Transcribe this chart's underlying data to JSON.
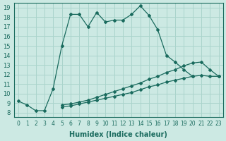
{
  "xlabel": "Humidex (Indice chaleur)",
  "xlim": [
    -0.5,
    23.5
  ],
  "ylim": [
    7.5,
    19.5
  ],
  "xticks": [
    0,
    1,
    2,
    3,
    4,
    5,
    6,
    7,
    8,
    9,
    10,
    11,
    12,
    13,
    14,
    15,
    16,
    17,
    18,
    19,
    20,
    21,
    22,
    23
  ],
  "yticks": [
    8,
    9,
    10,
    11,
    12,
    13,
    14,
    15,
    16,
    17,
    18,
    19
  ],
  "bg_color": "#cce9e3",
  "line_color": "#1a6b5e",
  "grid_color": "#aad4cc",
  "line1_x": [
    0,
    1,
    2,
    3,
    4,
    5,
    6,
    7,
    8,
    9,
    10,
    11,
    12,
    13,
    14,
    15,
    16,
    17,
    18,
    19,
    20
  ],
  "line1_y": [
    9.2,
    8.8,
    8.2,
    8.2,
    10.5,
    15.0,
    18.3,
    18.3,
    17.0,
    18.5,
    17.5,
    17.7,
    17.7,
    18.3,
    19.2,
    18.2,
    16.7,
    14.0,
    13.3,
    12.5,
    11.8
  ],
  "line2_x": [
    5,
    6,
    7,
    8,
    9,
    10,
    11,
    12,
    13,
    14,
    15,
    16,
    17,
    18,
    19,
    20,
    21,
    22,
    23
  ],
  "line2_y": [
    8.8,
    8.9,
    9.1,
    9.3,
    9.6,
    9.9,
    10.2,
    10.5,
    10.8,
    11.1,
    11.5,
    11.8,
    12.2,
    12.5,
    12.9,
    13.2,
    13.3,
    12.5,
    11.8
  ],
  "line3_x": [
    5,
    6,
    7,
    8,
    9,
    10,
    11,
    12,
    13,
    14,
    15,
    16,
    17,
    18,
    19,
    20,
    21,
    22,
    23
  ],
  "line3_y": [
    8.6,
    8.7,
    8.9,
    9.1,
    9.3,
    9.5,
    9.7,
    9.9,
    10.1,
    10.4,
    10.7,
    10.9,
    11.2,
    11.4,
    11.6,
    11.8,
    11.9,
    11.8,
    11.8
  ],
  "font_size_label": 7,
  "marker": "D",
  "marker_size": 2.0,
  "linewidth": 0.9
}
